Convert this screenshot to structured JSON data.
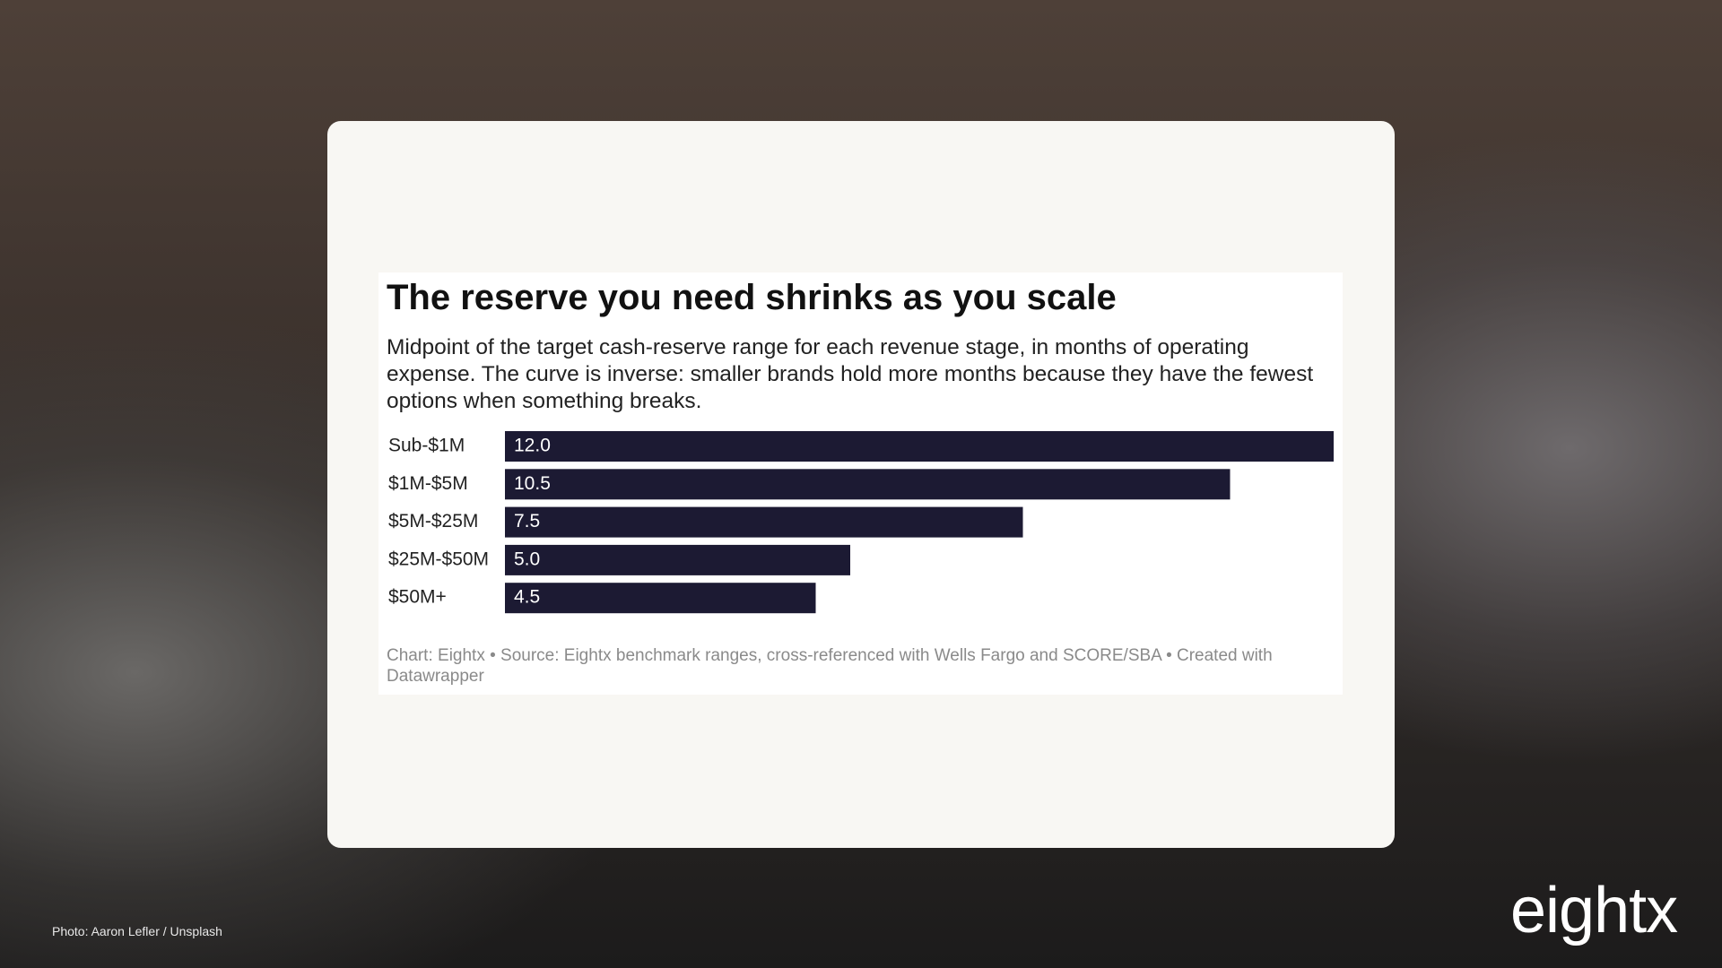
{
  "chart_data": {
    "type": "bar",
    "orientation": "horizontal",
    "title": "The reserve you need shrinks as you scale",
    "subtitle": "Midpoint of the target cash-reserve range for each revenue stage, in months of operating expense. The curve is inverse: smaller brands hold more months because they have the fewest options when something breaks.",
    "categories": [
      "Sub-$1M",
      "$1M-$5M",
      "$5M-$25M",
      "$25M-$50M",
      "$50M+"
    ],
    "values": [
      12,
      10.5,
      7.5,
      5,
      4.5
    ],
    "value_labels": [
      "12.0",
      "10.5",
      "7.5",
      "5.0",
      "4.5"
    ],
    "color": "#1c1a33",
    "source": "Chart: Eightx • Source: Eightx benchmark ranges, cross-referenced with Wells Fargo and SCORE/SBA • Created with Datawrapper"
  },
  "photo_credit": "Photo: Aaron Lefler / Unsplash",
  "logo": "eightx"
}
